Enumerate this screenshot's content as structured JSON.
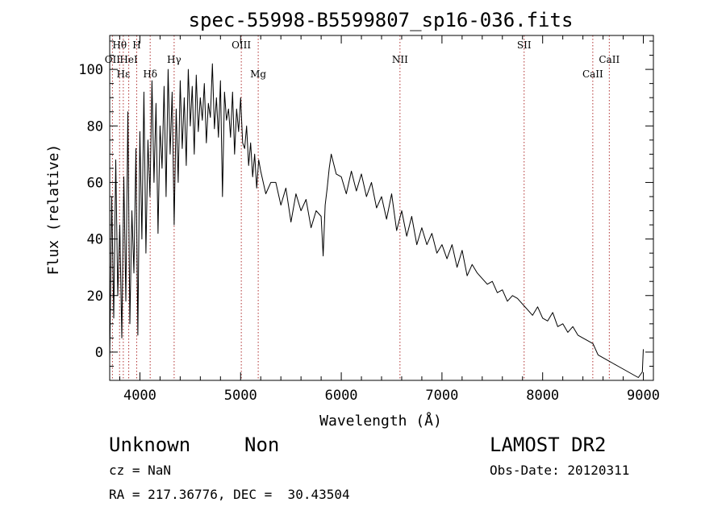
{
  "chart_data": {
    "type": "line",
    "title": "spec-55998-B5599807_sp16-036.fits",
    "xlabel": "Wavelength (Å)",
    "ylabel": "Flux (relative)",
    "xlim": [
      3700,
      9100
    ],
    "ylim": [
      -10,
      112
    ],
    "x_ticks": [
      4000,
      5000,
      6000,
      7000,
      8000,
      9000
    ],
    "y_ticks": [
      0,
      20,
      40,
      60,
      80,
      100
    ],
    "grid": false,
    "legend": "none",
    "line_color": "#000000",
    "marker_color": "#b03030",
    "lines": [
      {
        "label": "Hθ",
        "x": 3798,
        "row": 0
      },
      {
        "label": "H",
        "x": 3968,
        "row": 0
      },
      {
        "label": "OII",
        "x": 3727,
        "row": 1
      },
      {
        "label": "HeI",
        "x": 3889,
        "row": 1
      },
      {
        "label": "OIII",
        "x": 5007,
        "row": 0
      },
      {
        "label": "NII",
        "x": 6583,
        "row": 1
      },
      {
        "label": "SII",
        "x": 7816,
        "row": 0
      },
      {
        "label": "CaII",
        "x": 8662,
        "row": 1
      },
      {
        "label": "Hε",
        "x": 3835,
        "row": 2
      },
      {
        "label": "Hγ",
        "x": 4340,
        "row": 1
      },
      {
        "label": "Hδ",
        "x": 4102,
        "row": 2
      },
      {
        "label": "Mg",
        "x": 5175,
        "row": 2
      },
      {
        "label": "CaII",
        "x": 8498,
        "row": 2
      }
    ],
    "series": [
      {
        "x": [
          3700,
          3720,
          3740,
          3760,
          3780,
          3800,
          3820,
          3840,
          3860,
          3880,
          3900,
          3920,
          3940,
          3960,
          3980,
          4000,
          4020,
          4040,
          4060,
          4080,
          4100,
          4120,
          4140,
          4160,
          4180,
          4200,
          4220,
          4240,
          4260,
          4280,
          4300,
          4320,
          4340,
          4360,
          4380,
          4400,
          4420,
          4440,
          4460,
          4480,
          4500,
          4520,
          4540,
          4560,
          4580,
          4600,
          4620,
          4640,
          4660,
          4680,
          4700,
          4720,
          4740,
          4760,
          4780,
          4800,
          4820,
          4840,
          4860,
          4880,
          4900,
          4920,
          4940,
          4960,
          4980,
          5000,
          5020,
          5040,
          5060,
          5080,
          5100,
          5120,
          5140,
          5160,
          5180,
          5200,
          5250,
          5300,
          5350,
          5400,
          5450,
          5500,
          5550,
          5600,
          5650,
          5700,
          5750,
          5800,
          5820,
          5840,
          5860,
          5880,
          5900,
          5950,
          6000,
          6050,
          6100,
          6150,
          6200,
          6250,
          6300,
          6350,
          6400,
          6450,
          6500,
          6550,
          6600,
          6650,
          6700,
          6750,
          6800,
          6850,
          6900,
          6950,
          7000,
          7050,
          7100,
          7150,
          7200,
          7250,
          7300,
          7350,
          7400,
          7450,
          7500,
          7550,
          7600,
          7650,
          7700,
          7750,
          7800,
          7850,
          7900,
          7950,
          8000,
          8050,
          8100,
          8150,
          8200,
          8250,
          8300,
          8350,
          8400,
          8450,
          8500,
          8550,
          8600,
          8650,
          8700,
          8750,
          8800,
          8850,
          8900,
          8950,
          8990,
          9000
        ],
        "values": [
          -3,
          55,
          12,
          68,
          20,
          45,
          5,
          62,
          18,
          85,
          10,
          50,
          28,
          72,
          6,
          78,
          40,
          92,
          35,
          75,
          55,
          96,
          60,
          88,
          42,
          80,
          65,
          94,
          55,
          100,
          70,
          92,
          45,
          86,
          60,
          96,
          72,
          90,
          66,
          100,
          80,
          94,
          70,
          98,
          78,
          90,
          82,
          95,
          74,
          88,
          83,
          102,
          79,
          90,
          76,
          96,
          55,
          92,
          82,
          86,
          76,
          92,
          70,
          86,
          78,
          90,
          74,
          72,
          80,
          66,
          74,
          62,
          70,
          58,
          68,
          64,
          56,
          60,
          60,
          52,
          58,
          46,
          56,
          50,
          54,
          44,
          50,
          48,
          34,
          52,
          58,
          65,
          70,
          63,
          62,
          56,
          64,
          57,
          63,
          55,
          60,
          51,
          55,
          47,
          56,
          43,
          50,
          41,
          48,
          38,
          44,
          38,
          42,
          35,
          38,
          33,
          38,
          30,
          36,
          27,
          31,
          28,
          26,
          24,
          25,
          21,
          22,
          18,
          20,
          19,
          17,
          15,
          13,
          16,
          12,
          11,
          14,
          9,
          10,
          7,
          9,
          6,
          5,
          4,
          3,
          -1,
          -2,
          -3,
          -4,
          -5,
          -6,
          -7,
          -8,
          -9,
          -7,
          1
        ]
      }
    ]
  },
  "info": {
    "object_class": "Unknown",
    "subclass": "Non",
    "survey": "LAMOST DR2",
    "cz": "cz = NaN",
    "obs_date": "Obs-Date: 20120311",
    "coords": "RA = 217.36776, DEC =  30.43504"
  }
}
